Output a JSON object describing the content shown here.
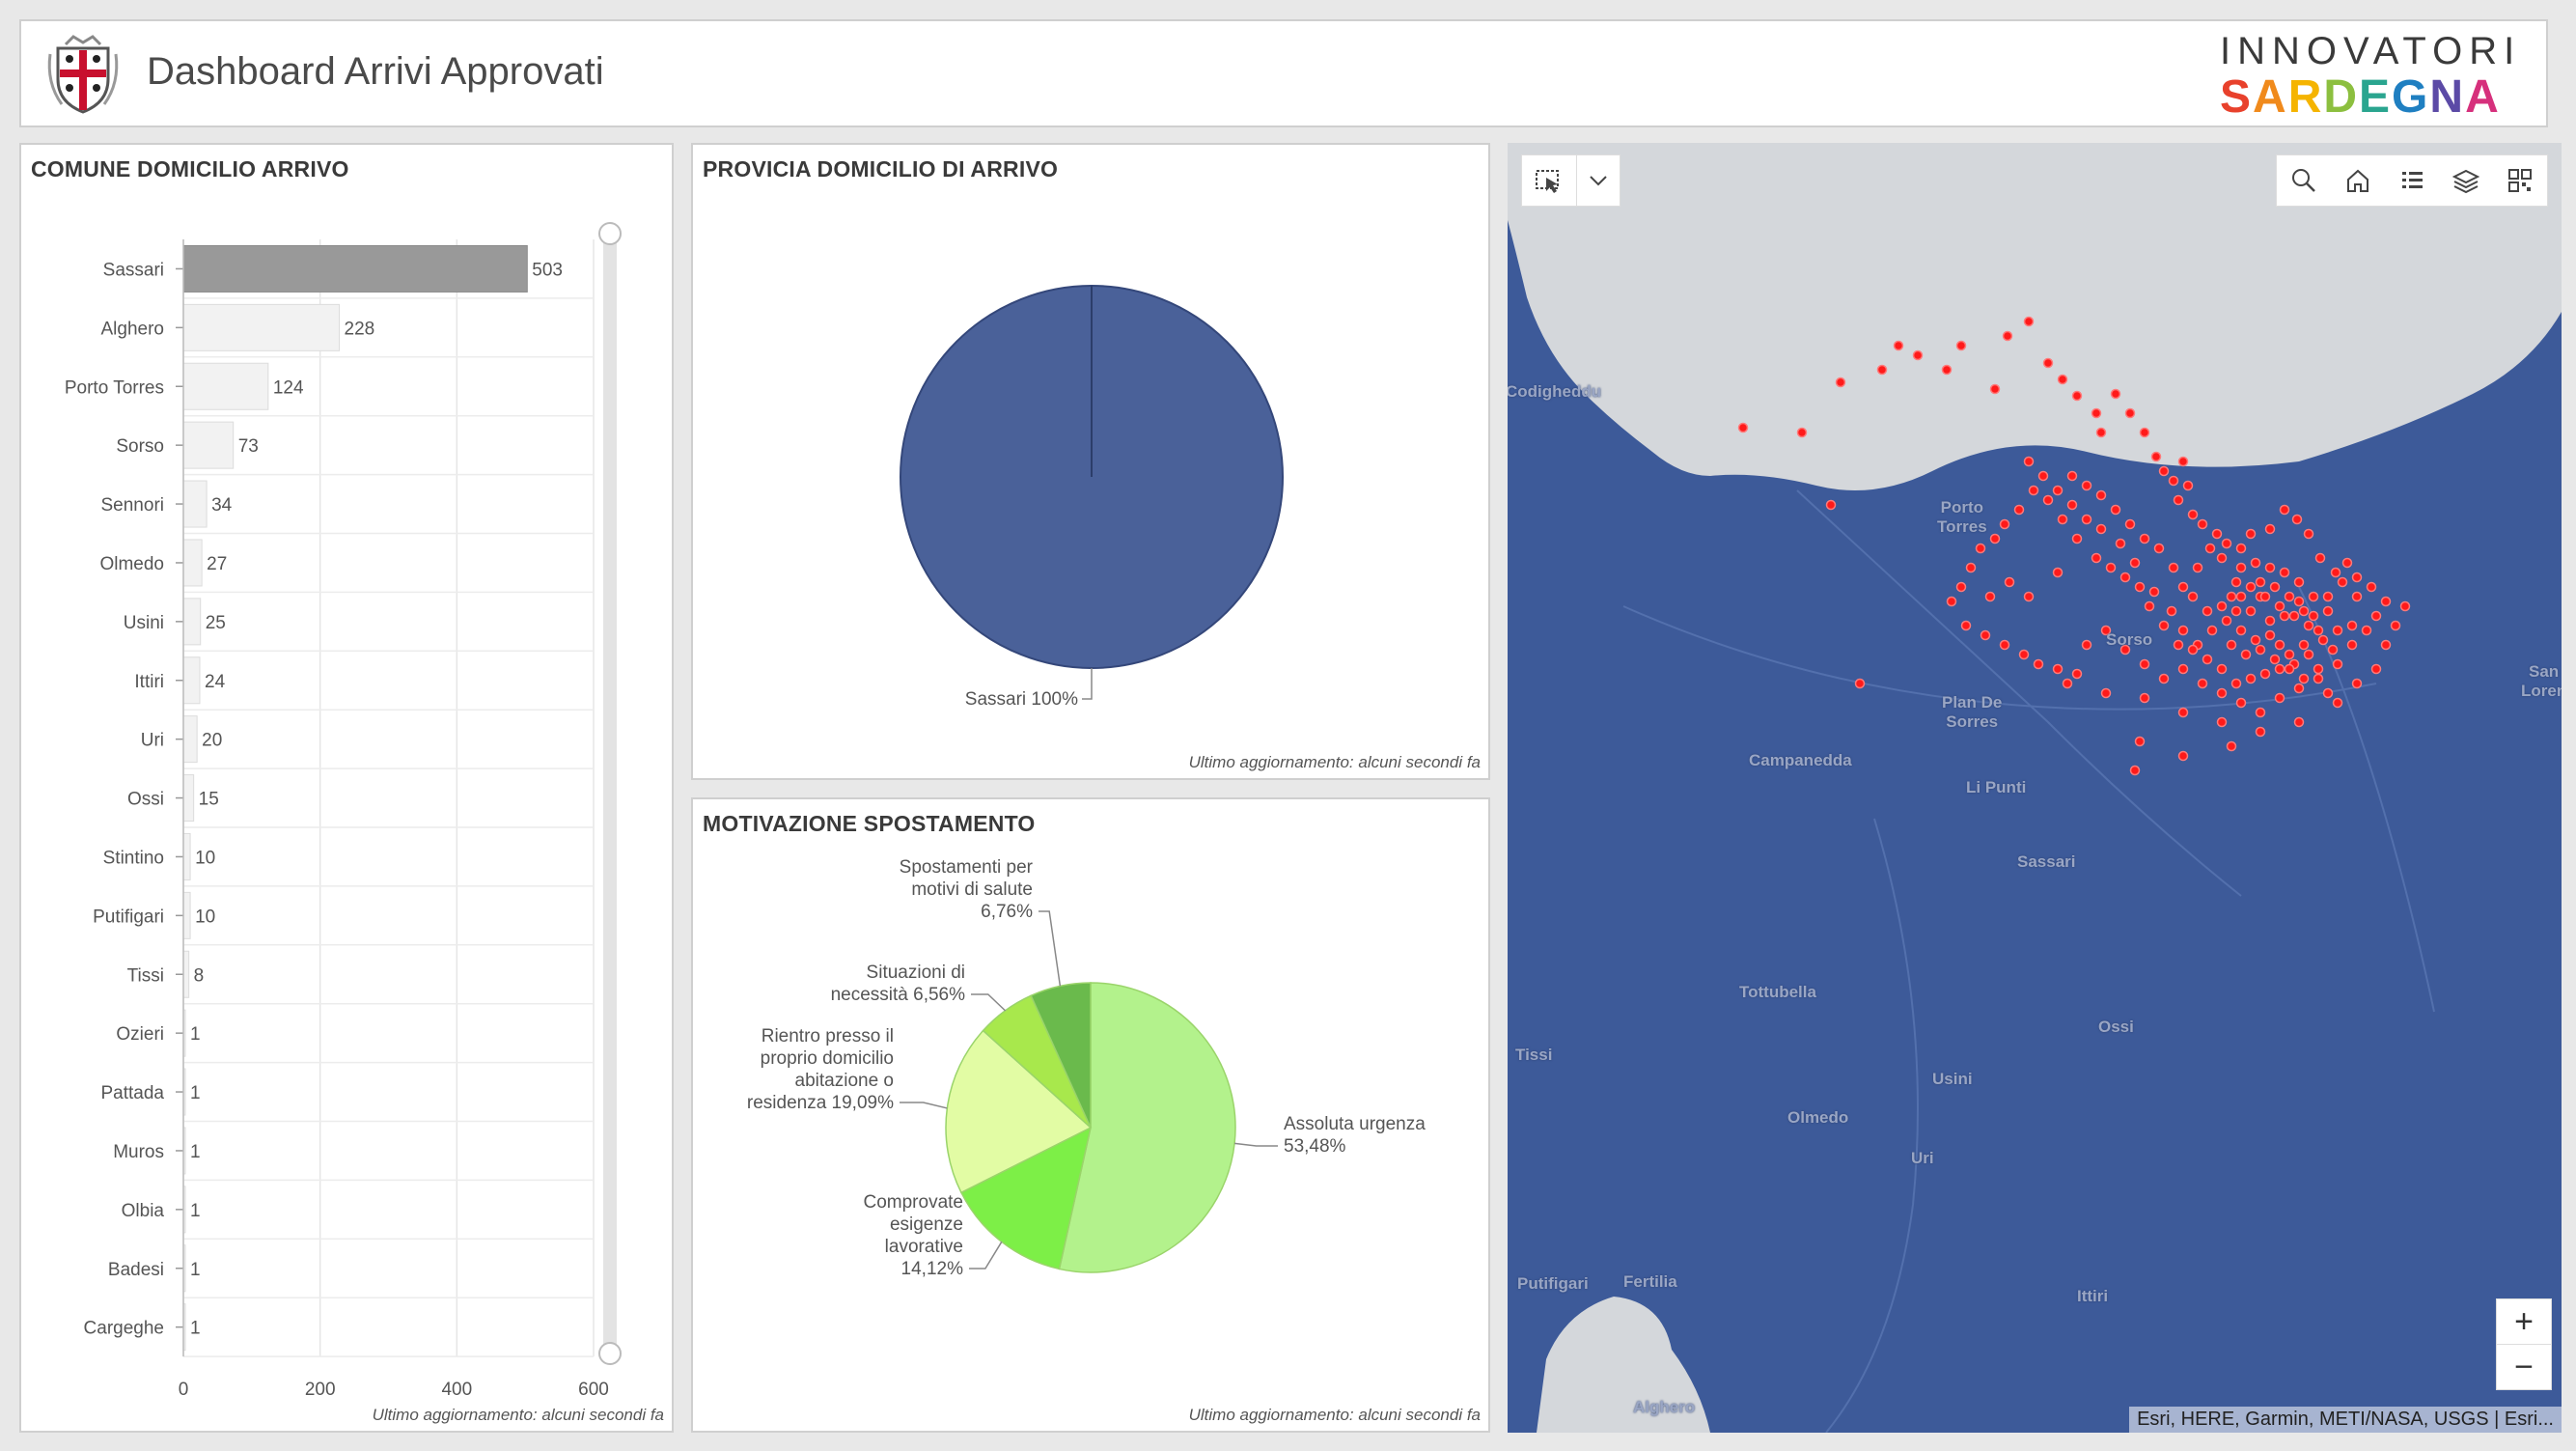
{
  "header": {
    "title": "Dashboard Arrivi Approvati",
    "brand_top": "INNOVATORI",
    "brand_bottom_letters": [
      "S",
      "A",
      "R",
      "D",
      "E",
      "G",
      "N",
      "A"
    ],
    "brand_colors": [
      "#e8412c",
      "#f08a1c",
      "#f5b400",
      "#8cbf3f",
      "#2aa58f",
      "#1f7fc1",
      "#5b4aa6",
      "#d6307c"
    ]
  },
  "bar_panel": {
    "title": "COMUNE DOMICILIO ARRIVO",
    "footnote": "Ultimo aggiornamento: alcuni secondi fa"
  },
  "province_panel": {
    "title": "PROVICIA DOMICILIO DI ARRIVO",
    "footnote": "Ultimo aggiornamento: alcuni secondi fa",
    "slice_label": "Sassari 100%"
  },
  "motivation_panel": {
    "title": "MOTIVAZIONE SPOSTAMENTO",
    "footnote": "Ultimo aggiornamento: alcuni secondi fa"
  },
  "chart_data": [
    {
      "type": "bar",
      "orientation": "horizontal",
      "title": "COMUNE DOMICILIO ARRIVO",
      "categories": [
        "Sassari",
        "Alghero",
        "Porto Torres",
        "Sorso",
        "Sennori",
        "Olmedo",
        "Usini",
        "Ittiri",
        "Uri",
        "Ossi",
        "Stintino",
        "Putifigari",
        "Tissi",
        "Ozieri",
        "Pattada",
        "Muros",
        "Olbia",
        "Badesi",
        "Cargeghe"
      ],
      "values": [
        503,
        228,
        124,
        73,
        34,
        27,
        25,
        24,
        20,
        15,
        10,
        10,
        8,
        1,
        1,
        1,
        1,
        1,
        1
      ],
      "xlim": [
        0,
        600
      ],
      "xticks": [
        0,
        200,
        400,
        600
      ],
      "highlight_color": "#999999",
      "bar_color": "#f2f2f2",
      "grid": true
    },
    {
      "type": "pie",
      "title": "PROVICIA DOMICILIO DI ARRIVO",
      "slices": [
        {
          "label": "Sassari",
          "value": 100,
          "display": "Sassari 100%",
          "color": "#4a6199"
        }
      ]
    },
    {
      "type": "pie",
      "title": "MOTIVAZIONE SPOSTAMENTO",
      "slices": [
        {
          "label": "Assoluta urgenza",
          "value": 53.48,
          "display": [
            "Assoluta urgenza",
            "53,48%"
          ],
          "color": "#b3f28c"
        },
        {
          "label": "Comprovate esigenze lavorative",
          "value": 14.12,
          "display": [
            "Comprovate",
            "esigenze",
            "lavorative",
            "14,12%"
          ],
          "color": "#7def47"
        },
        {
          "label": "Rientro presso il proprio domicilio abitazione o residenza",
          "value": 19.09,
          "display": [
            "Rientro presso il",
            "proprio domicilio",
            "abitazione o",
            "residenza 19,09%"
          ],
          "color": "#e2fca4"
        },
        {
          "label": "Situazioni di necessità",
          "value": 6.56,
          "display": [
            "Situazioni di",
            "necessità 6,56%"
          ],
          "color": "#a8e84c"
        },
        {
          "label": "Spostamenti per motivi di salute",
          "value": 6.76,
          "display": [
            "Spostamenti per",
            "motivi di salute",
            "6,76%"
          ],
          "color": "#6aba4c"
        }
      ]
    }
  ],
  "map": {
    "attribution": "Esri, HERE, Garmin, METI/NASA, USGS | Esri...",
    "zoom_in": "+",
    "zoom_out": "−",
    "toolbar_icons": [
      "search-icon",
      "home-icon",
      "legend-icon",
      "layers-icon",
      "qr-icon"
    ],
    "place_labels": [
      "Porto Torres",
      "Plan De Sorres",
      "Campanedda",
      "Li Punti",
      "Sassari",
      "Sorso",
      "Tottubella",
      "Olmedo",
      "Usini",
      "Uri",
      "Ossi",
      "Ittiri",
      "Alghero",
      "Fertilia",
      "Codigheddu",
      "San Lorenzo",
      "Tissi",
      "Putifigari"
    ],
    "land_color": "#3d5a99",
    "sea_color": "#d4d7db",
    "point_color": "#ff1a1a"
  }
}
